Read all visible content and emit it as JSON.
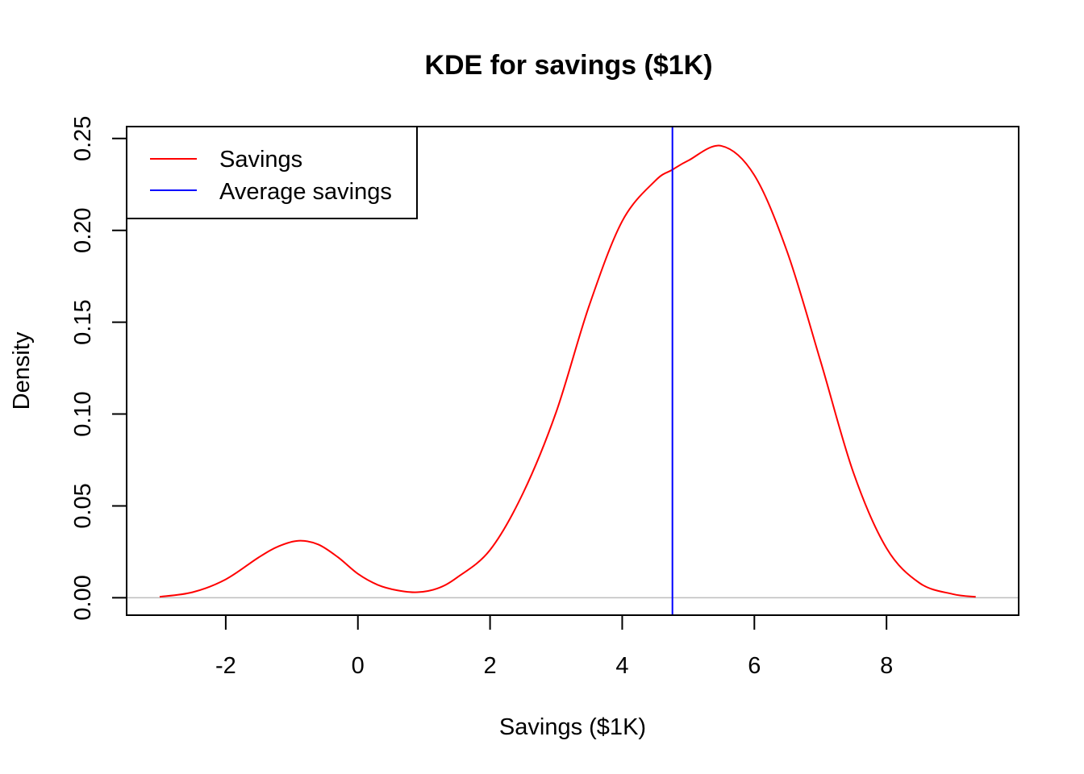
{
  "chart_data": {
    "type": "line",
    "title": "KDE for savings ($1K)",
    "xlabel": "Savings ($1K)",
    "ylabel": "Density",
    "xlim": [
      -3.5,
      10
    ],
    "ylim": [
      -0.0095,
      0.2565
    ],
    "x_ticks": [
      -2,
      0,
      2,
      4,
      6,
      8
    ],
    "x_tick_labels": [
      "-2",
      "0",
      "2",
      "4",
      "6",
      "8"
    ],
    "y_ticks": [
      0.0,
      0.05,
      0.1,
      0.15,
      0.2,
      0.25
    ],
    "y_tick_labels": [
      "0.00",
      "0.05",
      "0.10",
      "0.15",
      "0.20",
      "0.25"
    ],
    "grid": false,
    "legend_position": "top-left",
    "series": [
      {
        "name": "Savings",
        "color": "#ff0000",
        "x": [
          -3.0,
          -2.5,
          -2.0,
          -1.5,
          -1.2,
          -0.9,
          -0.6,
          -0.3,
          0.0,
          0.3,
          0.6,
          0.9,
          1.2,
          1.5,
          2.0,
          2.5,
          3.0,
          3.5,
          4.0,
          4.5,
          4.76,
          5.0,
          5.5,
          6.0,
          6.5,
          7.0,
          7.5,
          8.0,
          8.5,
          9.0,
          9.35
        ],
        "y": [
          0.0005,
          0.003,
          0.01,
          0.022,
          0.028,
          0.031,
          0.029,
          0.022,
          0.013,
          0.007,
          0.004,
          0.003,
          0.005,
          0.011,
          0.026,
          0.057,
          0.101,
          0.159,
          0.205,
          0.227,
          0.233,
          0.238,
          0.246,
          0.23,
          0.188,
          0.129,
          0.068,
          0.027,
          0.008,
          0.002,
          0.0005
        ]
      }
    ],
    "vlines": [
      {
        "name": "Average savings",
        "x": 4.76,
        "color": "#0000ff"
      }
    ],
    "hline_y": 0,
    "hline_color": "#bebebe"
  }
}
